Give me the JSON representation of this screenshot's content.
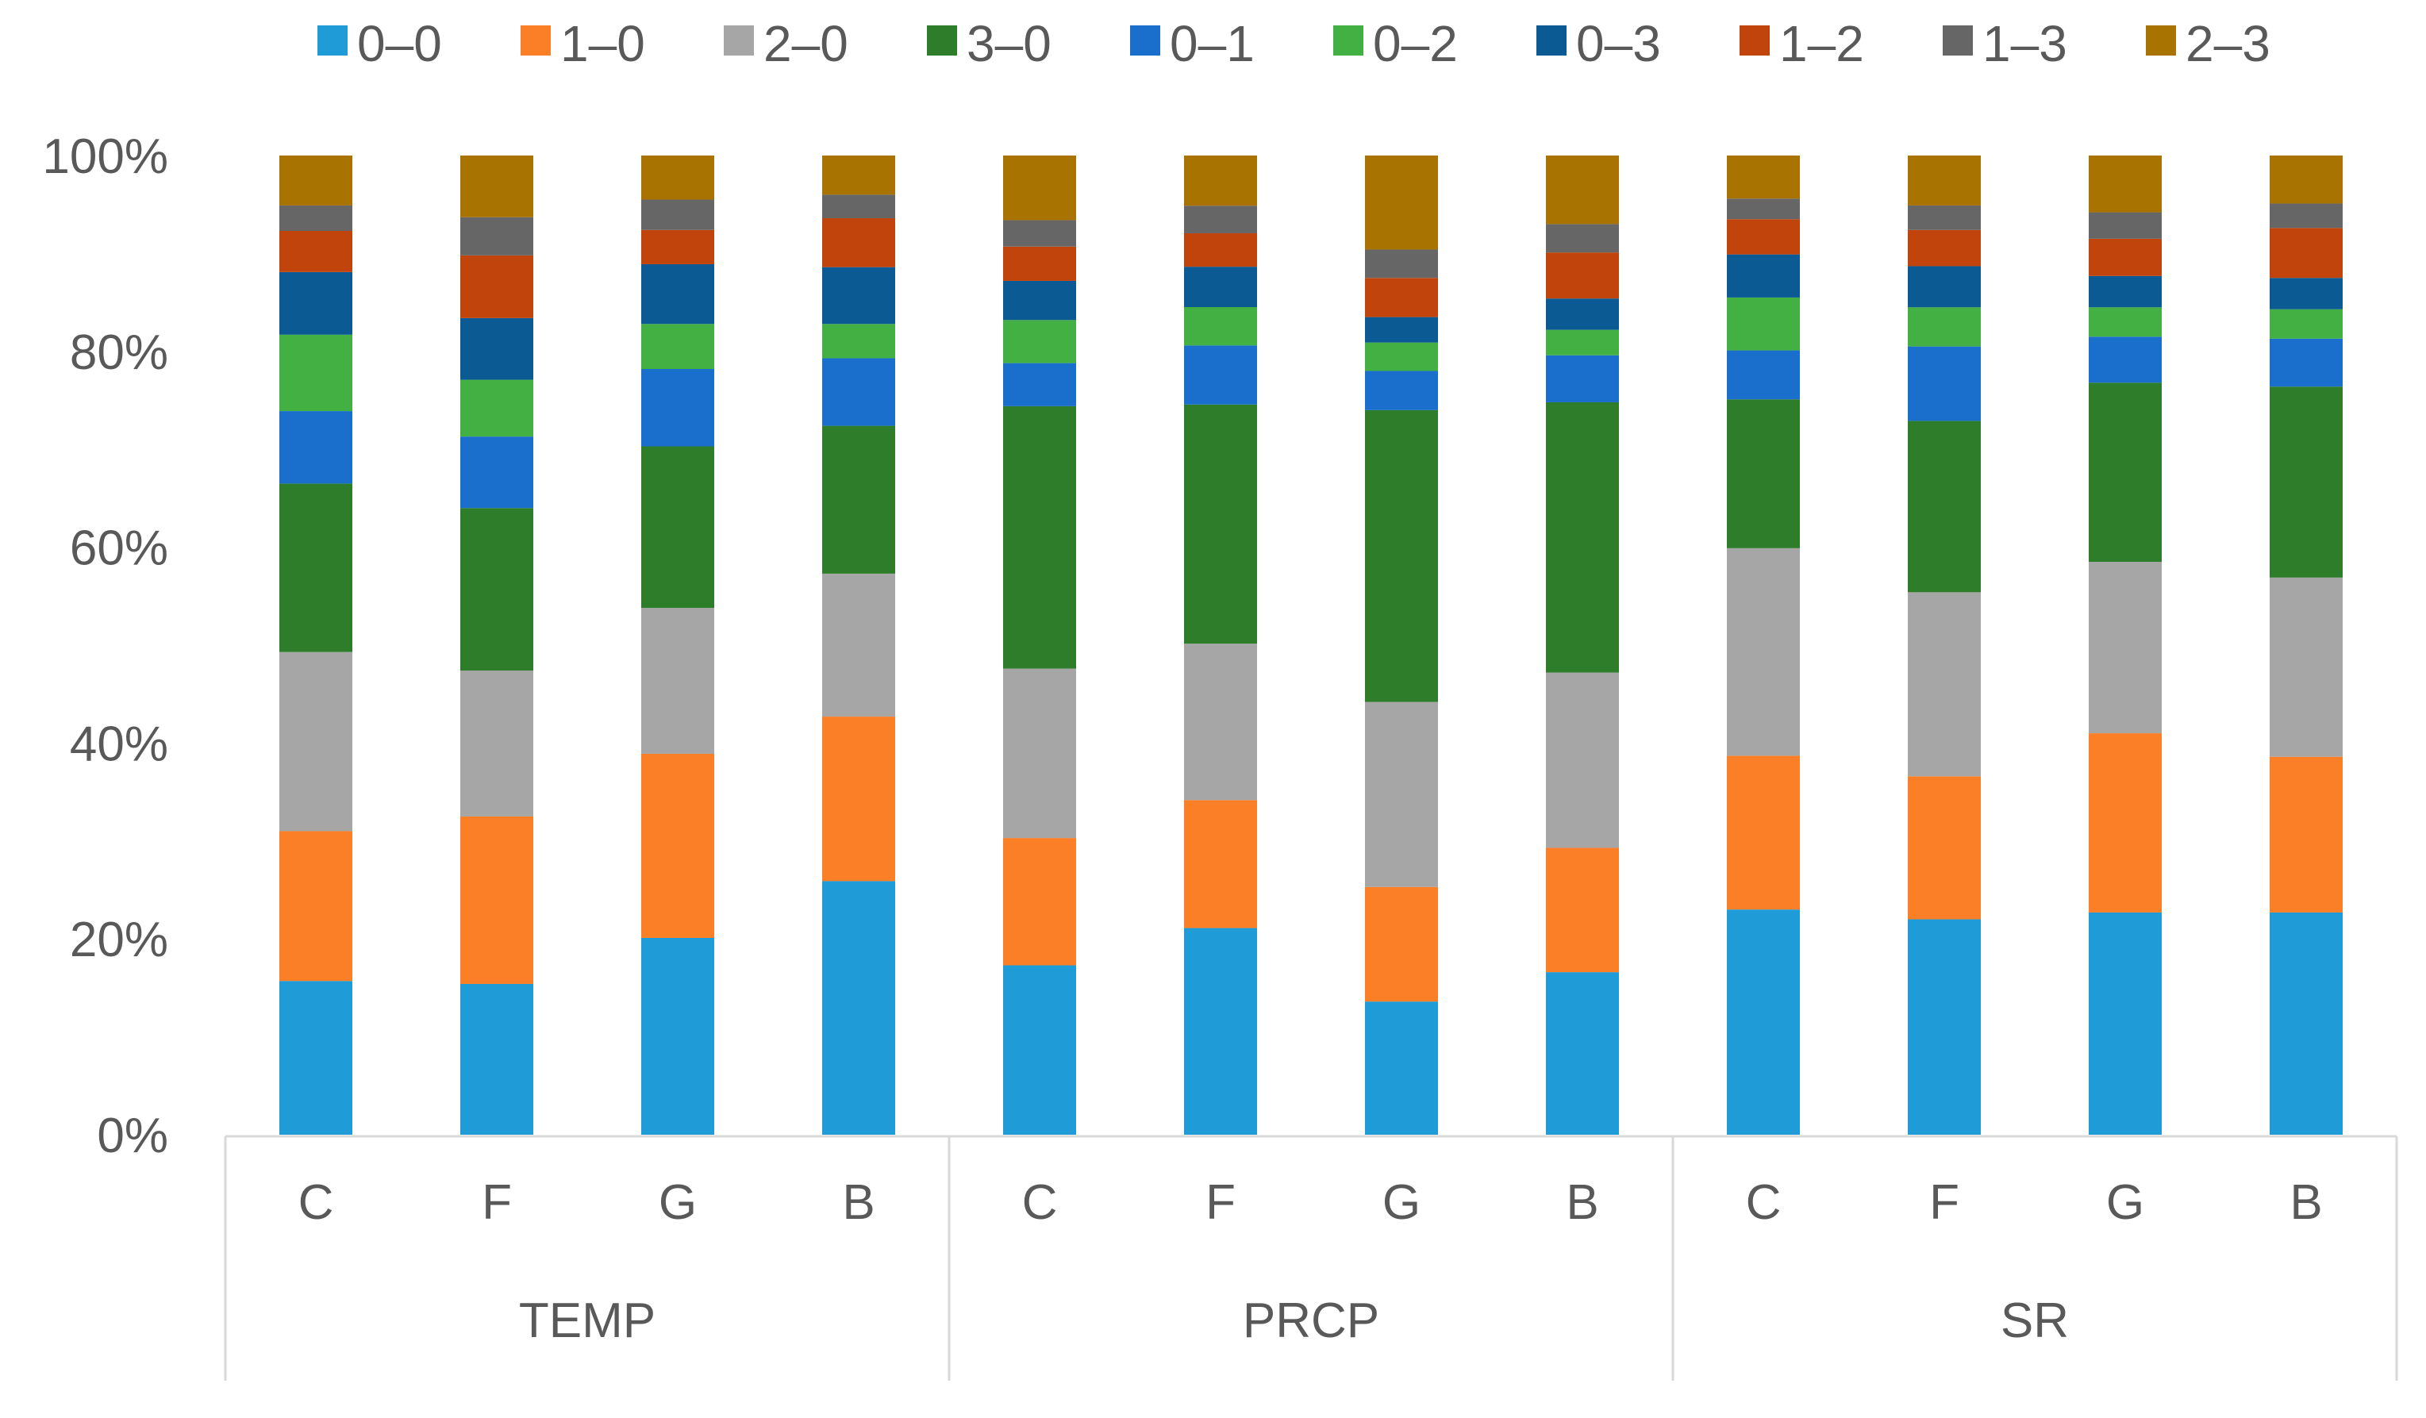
{
  "chart_data": {
    "type": "bar",
    "stacked": "percent",
    "title": "",
    "xlabel": "",
    "ylabel": "",
    "ylim": [
      0,
      100
    ],
    "y_ticks": [
      "0%",
      "20%",
      "40%",
      "60%",
      "80%",
      "100%"
    ],
    "y_tick_values": [
      0,
      20,
      40,
      60,
      80,
      100
    ],
    "legend_position": "top",
    "groups": [
      {
        "name": "TEMP",
        "categories": [
          "C",
          "F",
          "G",
          "B"
        ]
      },
      {
        "name": "PRCP",
        "categories": [
          "C",
          "F",
          "G",
          "B"
        ]
      },
      {
        "name": "SR",
        "categories": [
          "C",
          "F",
          "G",
          "B"
        ]
      }
    ],
    "series": [
      {
        "name": "0–0",
        "color": "#1f9bd7",
        "values": [
          15.7,
          15.4,
          20.1,
          25.9,
          17.3,
          21.0,
          13.6,
          16.6,
          23.0,
          22.0,
          22.7,
          22.7
        ]
      },
      {
        "name": "1–0",
        "color": "#fb7f26",
        "values": [
          15.3,
          17.1,
          18.8,
          16.8,
          13.0,
          13.0,
          11.7,
          12.7,
          15.7,
          14.6,
          18.3,
          15.9
        ]
      },
      {
        "name": "2–0",
        "color": "#a6a6a6",
        "values": [
          18.3,
          14.9,
          14.9,
          14.6,
          17.3,
          15.9,
          18.9,
          17.9,
          21.2,
          18.8,
          17.5,
          18.3
        ]
      },
      {
        "name": "3–0",
        "color": "#2e7d2a",
        "values": [
          17.2,
          16.6,
          16.5,
          15.1,
          26.8,
          24.3,
          29.8,
          27.6,
          15.2,
          17.5,
          18.3,
          19.5
        ]
      },
      {
        "name": "0–1",
        "color": "#1a6fcc",
        "values": [
          7.4,
          7.3,
          7.9,
          6.9,
          4.4,
          6.0,
          4.0,
          4.8,
          5.0,
          7.6,
          4.7,
          4.9
        ]
      },
      {
        "name": "0–2",
        "color": "#43b043",
        "values": [
          7.8,
          5.8,
          4.6,
          3.5,
          4.4,
          3.9,
          2.9,
          2.6,
          5.4,
          4.0,
          3.0,
          3.0
        ]
      },
      {
        "name": "0–3",
        "color": "#0c5a94",
        "values": [
          6.4,
          6.3,
          6.1,
          5.8,
          4.0,
          4.1,
          2.6,
          3.2,
          4.4,
          4.2,
          3.2,
          3.2
        ]
      },
      {
        "name": "1–2",
        "color": "#c0440c",
        "values": [
          4.2,
          6.4,
          3.5,
          5.0,
          3.5,
          3.4,
          4.0,
          4.7,
          3.6,
          3.7,
          3.8,
          5.1
        ]
      },
      {
        "name": "1–3",
        "color": "#666666",
        "values": [
          2.6,
          3.9,
          3.1,
          2.4,
          2.7,
          2.8,
          2.9,
          2.9,
          2.1,
          2.5,
          2.7,
          2.5
        ]
      },
      {
        "name": "2–3",
        "color": "#a87300",
        "values": [
          5.1,
          6.3,
          4.5,
          4.0,
          6.6,
          5.1,
          9.6,
          7.0,
          4.4,
          5.1,
          5.8,
          4.9
        ]
      }
    ]
  }
}
